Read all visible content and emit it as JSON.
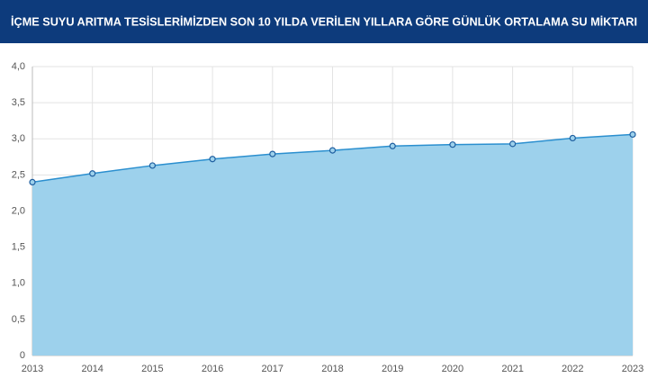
{
  "chart_data": {
    "type": "area",
    "title": "İÇME SUYU ARITMA TESİSLERİMİZDEN SON 10 YILDA VERİLEN YILLARA GÖRE GÜNLÜK ORTALAMA SU MİKTARI",
    "x": [
      2013,
      2014,
      2015,
      2016,
      2017,
      2018,
      2019,
      2020,
      2021,
      2022,
      2023
    ],
    "values": [
      2.4,
      2.52,
      2.63,
      2.72,
      2.79,
      2.84,
      2.9,
      2.92,
      2.93,
      3.01,
      3.06
    ],
    "color": "#9dd1ec",
    "line_color": "#2b8fcf",
    "marker_color": "#1f5fa0",
    "xlim": [
      2013,
      2023
    ],
    "xticks": [
      2013,
      2014,
      2015,
      2016,
      2017,
      2018,
      2019,
      2020,
      2021,
      2022,
      2023
    ],
    "ylim": [
      0,
      4
    ],
    "yticks": [
      0,
      {
        "value": 0.5,
        "label": "0,5"
      },
      {
        "value": 1,
        "label": "1,0"
      },
      {
        "value": 1.5,
        "label": "1,5"
      },
      {
        "value": 2,
        "label": "2,0"
      },
      {
        "value": 2.5,
        "label": "2,5"
      },
      {
        "value": 3,
        "label": "3,0"
      },
      {
        "value": 3.5,
        "label": "3,5"
      },
      {
        "value": 4,
        "label": "4,0"
      }
    ],
    "grid": true
  }
}
